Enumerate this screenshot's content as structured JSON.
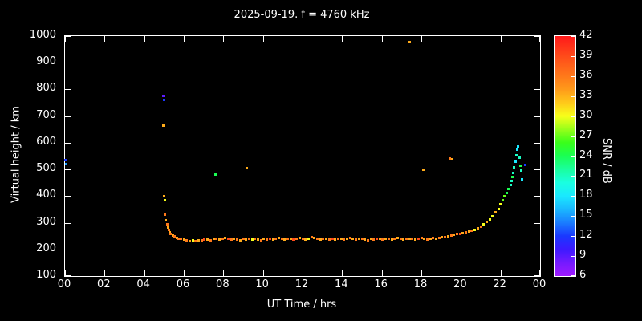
{
  "chart_data": {
    "type": "scatter",
    "title": "2025-09-19. f = 4760 kHz",
    "xlabel": "UT Time / hrs",
    "ylabel": "Virtual height / km",
    "xlim": [
      0,
      24
    ],
    "ylim": [
      100,
      1000
    ],
    "grid": false,
    "background": "#000000",
    "foreground": "#ffffff",
    "x_tick_values": [
      0,
      2,
      4,
      6,
      8,
      10,
      12,
      14,
      16,
      18,
      20,
      22,
      24
    ],
    "x_tick_labels": [
      "00",
      "02",
      "04",
      "06",
      "08",
      "10",
      "12",
      "14",
      "16",
      "18",
      "20",
      "22",
      "00"
    ],
    "y_tick_values": [
      100,
      200,
      300,
      400,
      500,
      600,
      700,
      800,
      900,
      1000
    ],
    "colorbar": {
      "label": "SNR / dB",
      "min": 6,
      "max": 42,
      "tick_values": [
        6,
        9,
        12,
        15,
        18,
        21,
        24,
        27,
        30,
        33,
        36,
        39,
        42
      ]
    },
    "colormap_hue_anchors": [
      [
        6,
        275
      ],
      [
        9,
        258
      ],
      [
        12,
        232
      ],
      [
        15,
        205
      ],
      [
        18,
        186
      ],
      [
        21,
        165
      ],
      [
        24,
        135
      ],
      [
        27,
        100
      ],
      [
        30,
        62
      ],
      [
        33,
        38
      ],
      [
        36,
        25
      ],
      [
        39,
        13
      ],
      [
        42,
        0
      ]
    ],
    "points": [
      [
        0.02,
        535,
        12
      ],
      [
        0.06,
        520,
        15
      ],
      [
        4.95,
        775,
        9
      ],
      [
        5.0,
        762,
        12
      ],
      [
        4.97,
        665,
        33
      ],
      [
        5.0,
        400,
        33
      ],
      [
        5.03,
        385,
        30
      ],
      [
        5.05,
        330,
        36
      ],
      [
        5.1,
        310,
        33
      ],
      [
        5.15,
        295,
        36
      ],
      [
        5.2,
        283,
        33
      ],
      [
        5.25,
        272,
        36
      ],
      [
        5.3,
        265,
        33
      ],
      [
        5.35,
        258,
        36
      ],
      [
        5.45,
        252,
        33
      ],
      [
        5.55,
        248,
        36
      ],
      [
        5.65,
        244,
        33
      ],
      [
        5.75,
        241,
        36
      ],
      [
        5.85,
        240,
        36
      ],
      [
        6.0,
        236,
        33
      ],
      [
        6.15,
        233,
        36
      ],
      [
        6.3,
        231,
        33
      ],
      [
        6.45,
        234,
        30
      ],
      [
        6.6,
        232,
        36
      ],
      [
        6.75,
        235,
        33
      ],
      [
        6.9,
        233,
        36
      ],
      [
        7.05,
        236,
        39
      ],
      [
        7.2,
        238,
        33
      ],
      [
        7.35,
        235,
        36
      ],
      [
        7.5,
        239,
        33
      ],
      [
        7.65,
        241,
        36
      ],
      [
        7.8,
        237,
        33
      ],
      [
        7.95,
        240,
        36
      ],
      [
        8.1,
        243,
        33
      ],
      [
        8.25,
        239,
        39
      ],
      [
        8.4,
        236,
        36
      ],
      [
        8.55,
        241,
        33
      ],
      [
        8.7,
        238,
        36
      ],
      [
        8.85,
        235,
        33
      ],
      [
        9.0,
        239,
        36
      ],
      [
        9.15,
        237,
        33
      ],
      [
        9.3,
        241,
        36
      ],
      [
        9.45,
        236,
        30
      ],
      [
        9.6,
        239,
        36
      ],
      [
        9.75,
        237,
        33
      ],
      [
        9.9,
        235,
        36
      ],
      [
        10.05,
        239,
        33
      ],
      [
        10.2,
        237,
        36
      ],
      [
        10.35,
        241,
        39
      ],
      [
        10.5,
        236,
        33
      ],
      [
        10.65,
        239,
        36
      ],
      [
        10.8,
        243,
        33
      ],
      [
        10.95,
        239,
        36
      ],
      [
        11.1,
        237,
        33
      ],
      [
        11.25,
        241,
        36
      ],
      [
        11.4,
        239,
        33
      ],
      [
        11.55,
        237,
        39
      ],
      [
        11.7,
        241,
        36
      ],
      [
        11.85,
        244,
        33
      ],
      [
        12.0,
        240,
        36
      ],
      [
        12.15,
        238,
        33
      ],
      [
        12.3,
        241,
        30
      ],
      [
        12.45,
        246,
        36
      ],
      [
        12.6,
        244,
        33
      ],
      [
        12.75,
        240,
        36
      ],
      [
        12.9,
        238,
        33
      ],
      [
        13.05,
        241,
        36
      ],
      [
        13.2,
        239,
        33
      ],
      [
        13.35,
        236,
        36
      ],
      [
        13.5,
        239,
        39
      ],
      [
        13.65,
        237,
        33
      ],
      [
        13.8,
        241,
        36
      ],
      [
        13.95,
        239,
        33
      ],
      [
        14.1,
        237,
        36
      ],
      [
        14.25,
        241,
        33
      ],
      [
        14.4,
        243,
        36
      ],
      [
        14.55,
        239,
        33
      ],
      [
        14.7,
        237,
        36
      ],
      [
        14.85,
        241,
        33
      ],
      [
        15.0,
        239,
        36
      ],
      [
        15.15,
        237,
        33
      ],
      [
        15.3,
        235,
        36
      ],
      [
        15.45,
        239,
        33
      ],
      [
        15.6,
        237,
        36
      ],
      [
        15.75,
        241,
        39
      ],
      [
        15.9,
        239,
        33
      ],
      [
        16.05,
        237,
        36
      ],
      [
        16.2,
        239,
        33
      ],
      [
        16.35,
        241,
        36
      ],
      [
        16.5,
        238,
        33
      ],
      [
        16.65,
        240,
        36
      ],
      [
        16.8,
        242,
        33
      ],
      [
        16.95,
        240,
        36
      ],
      [
        17.1,
        238,
        33
      ],
      [
        17.25,
        240,
        36
      ],
      [
        17.4,
        241,
        33
      ],
      [
        17.55,
        239,
        36
      ],
      [
        17.7,
        238,
        33
      ],
      [
        17.85,
        240,
        39
      ],
      [
        18.0,
        242,
        36
      ],
      [
        18.15,
        240,
        33
      ],
      [
        18.3,
        238,
        36
      ],
      [
        18.45,
        241,
        33
      ],
      [
        18.6,
        244,
        36
      ],
      [
        18.75,
        240,
        33
      ],
      [
        18.9,
        242,
        36
      ],
      [
        19.05,
        245,
        33
      ],
      [
        19.2,
        247,
        36
      ],
      [
        19.35,
        249,
        33
      ],
      [
        19.5,
        251,
        36
      ],
      [
        19.65,
        254,
        33
      ],
      [
        19.8,
        257,
        36
      ],
      [
        19.95,
        259,
        39
      ],
      [
        20.1,
        261,
        33
      ],
      [
        20.25,
        264,
        36
      ],
      [
        20.4,
        267,
        33
      ],
      [
        20.55,
        270,
        36
      ],
      [
        20.7,
        274,
        30
      ],
      [
        20.85,
        279,
        33
      ],
      [
        21.0,
        284,
        36
      ],
      [
        21.15,
        293,
        30
      ],
      [
        21.3,
        303,
        33
      ],
      [
        21.45,
        313,
        30
      ],
      [
        21.6,
        323,
        30
      ],
      [
        21.75,
        338,
        33
      ],
      [
        21.9,
        352,
        30
      ],
      [
        22.0,
        368,
        30
      ],
      [
        22.1,
        383,
        27
      ],
      [
        22.2,
        398,
        27
      ],
      [
        22.3,
        412,
        24
      ],
      [
        22.4,
        428,
        24
      ],
      [
        22.5,
        443,
        21
      ],
      [
        22.55,
        458,
        21
      ],
      [
        22.6,
        472,
        24
      ],
      [
        22.65,
        488,
        21
      ],
      [
        22.7,
        508,
        21
      ],
      [
        22.75,
        528,
        18
      ],
      [
        22.8,
        552,
        21
      ],
      [
        22.85,
        574,
        18
      ],
      [
        22.9,
        586,
        18
      ],
      [
        22.95,
        545,
        21
      ],
      [
        23.0,
        515,
        24
      ],
      [
        23.05,
        495,
        21
      ],
      [
        23.1,
        462,
        18
      ],
      [
        23.25,
        517,
        12
      ],
      [
        7.6,
        480,
        24
      ],
      [
        9.2,
        505,
        33
      ],
      [
        17.4,
        978,
        33
      ],
      [
        18.1,
        498,
        33
      ],
      [
        19.45,
        542,
        36
      ],
      [
        19.55,
        538,
        33
      ]
    ]
  }
}
